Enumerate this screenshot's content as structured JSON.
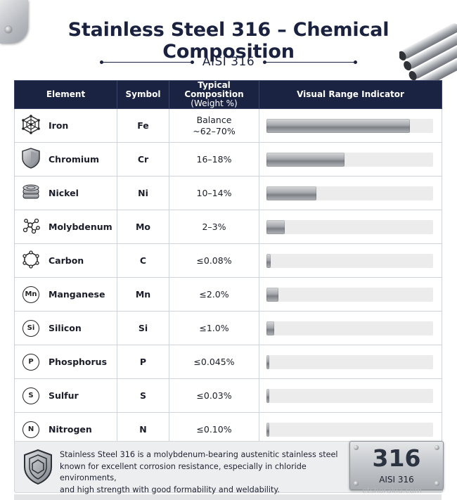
{
  "header": {
    "title": "Stainless Steel 316 – Chemical Composition",
    "subtitle": "AISI 316"
  },
  "table": {
    "columns": {
      "element": "Element",
      "symbol": "Symbol",
      "composition_line1": "Typical Composition",
      "composition_line2": "(Weight %)",
      "indicator": "Visual Range Indicator"
    },
    "rows": [
      {
        "name": "Iron",
        "symbol": "Fe",
        "composition_line1": "Balance",
        "composition_line2": "~62–70%",
        "indicator_fraction": 0.86,
        "icon": "lattice-icon"
      },
      {
        "name": "Chromium",
        "symbol": "Cr",
        "composition_line1": "16–18%",
        "composition_line2": "",
        "indicator_fraction": 0.47,
        "icon": "shield-icon"
      },
      {
        "name": "Nickel",
        "symbol": "Ni",
        "composition_line1": "10–14%",
        "composition_line2": "",
        "indicator_fraction": 0.3,
        "icon": "coin-stack-icon"
      },
      {
        "name": "Molybdenum",
        "symbol": "Mo",
        "composition_line1": "2–3%",
        "composition_line2": "",
        "indicator_fraction": 0.11,
        "icon": "molecule-icon"
      },
      {
        "name": "Carbon",
        "symbol": "C",
        "composition_line1": "≤0.08%",
        "composition_line2": "",
        "indicator_fraction": 0.025,
        "icon": "hexagon-icon"
      },
      {
        "name": "Manganese",
        "symbol": "Mn",
        "composition_line1": "≤2.0%",
        "composition_line2": "",
        "indicator_fraction": 0.07,
        "icon": "mn-badge-icon",
        "badge": "Mn"
      },
      {
        "name": "Silicon",
        "symbol": "Si",
        "composition_line1": "≤1.0%",
        "composition_line2": "",
        "indicator_fraction": 0.045,
        "icon": "si-badge-icon",
        "badge": "Si"
      },
      {
        "name": "Phosphorus",
        "symbol": "P",
        "composition_line1": "≤0.045%",
        "composition_line2": "",
        "indicator_fraction": 0.015,
        "icon": "p-badge-icon",
        "badge": "P"
      },
      {
        "name": "Sulfur",
        "symbol": "S",
        "composition_line1": "≤0.03%",
        "composition_line2": "",
        "indicator_fraction": 0.015,
        "icon": "s-badge-icon",
        "badge": "S"
      },
      {
        "name": "Nitrogen",
        "symbol": "N",
        "composition_line1": "≤0.10%",
        "composition_line2": "",
        "indicator_fraction": 0.015,
        "icon": "n-badge-icon",
        "badge": "N"
      }
    ]
  },
  "footer": {
    "line1": "Stainless Steel 316 is a molybdenum-bearing austenitic stainless steel",
    "line2": "known for excellent corrosion resistance, especially in chloride environments,",
    "line3": "and high strength with good formability and weldability.",
    "badge_number": "316",
    "badge_label": "AISI 316",
    "watermark": "etshorakia.com"
  },
  "colors": {
    "header_bg": "#1b2342",
    "title": "#1a2240",
    "bar_track": "#ececed"
  }
}
